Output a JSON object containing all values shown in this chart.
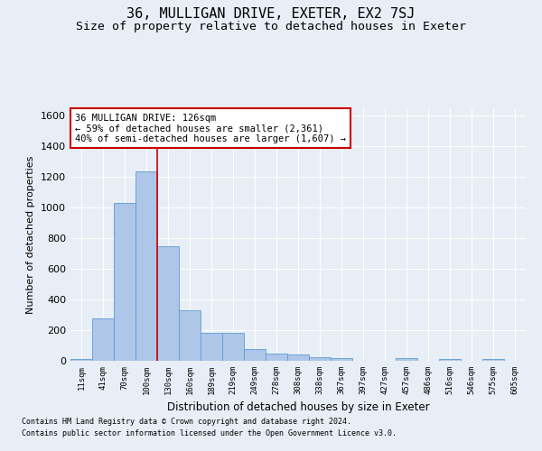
{
  "title": "36, MULLIGAN DRIVE, EXETER, EX2 7SJ",
  "subtitle": "Size of property relative to detached houses in Exeter",
  "xlabel": "Distribution of detached houses by size in Exeter",
  "ylabel": "Number of detached properties",
  "footer_line1": "Contains HM Land Registry data © Crown copyright and database right 2024.",
  "footer_line2": "Contains public sector information licensed under the Open Government Licence v3.0.",
  "bin_labels": [
    "11sqm",
    "41sqm",
    "70sqm",
    "100sqm",
    "130sqm",
    "160sqm",
    "189sqm",
    "219sqm",
    "249sqm",
    "278sqm",
    "308sqm",
    "338sqm",
    "367sqm",
    "397sqm",
    "427sqm",
    "457sqm",
    "486sqm",
    "516sqm",
    "546sqm",
    "575sqm",
    "605sqm"
  ],
  "bar_values": [
    12,
    275,
    1030,
    1240,
    750,
    330,
    180,
    180,
    75,
    45,
    40,
    25,
    18,
    0,
    0,
    18,
    0,
    12,
    0,
    12,
    0
  ],
  "bar_color": "#aec6e8",
  "bar_edgecolor": "#5b9bd5",
  "annotation_line1": "36 MULLIGAN DRIVE: 126sqm",
  "annotation_line2": "← 59% of detached houses are smaller (2,361)",
  "annotation_line3": "40% of semi-detached houses are larger (1,607) →",
  "annotation_box_edgecolor": "#cc0000",
  "annotation_box_facecolor": "#ffffff",
  "vline_x": 3.5,
  "vline_color": "#cc0000",
  "ylim": [
    0,
    1650
  ],
  "yticks": [
    0,
    200,
    400,
    600,
    800,
    1000,
    1200,
    1400,
    1600
  ],
  "bg_color": "#e8eef5",
  "plot_bg_color": "#e8eef5",
  "title_fontsize": 11,
  "subtitle_fontsize": 9.5
}
